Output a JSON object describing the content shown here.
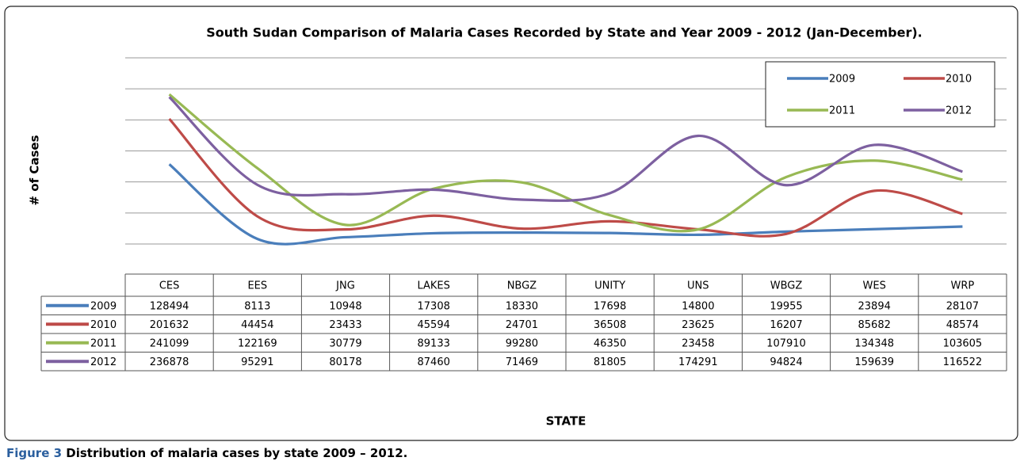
{
  "chart_data": {
    "type": "line",
    "title": "South Sudan Comparison of Malaria Cases Recorded by State and Year 2009 - 2012 (Jan-December).",
    "ylabel": "# of Cases",
    "xlabel": "STATE",
    "categories": [
      "CES",
      "EES",
      "JNG",
      "LAKES",
      "NBGZ",
      "UNITY",
      "UNS",
      "WBGZ",
      "WES",
      "WRP"
    ],
    "series": [
      {
        "name": "2009",
        "color": "#4a7ebb",
        "values": [
          128494,
          8113,
          10948,
          17308,
          18330,
          17698,
          14800,
          19955,
          23894,
          28107
        ]
      },
      {
        "name": "2010",
        "color": "#be4b48",
        "values": [
          201632,
          44454,
          23433,
          45594,
          24701,
          36508,
          23625,
          16207,
          85682,
          48574
        ]
      },
      {
        "name": "2011",
        "color": "#98b954",
        "values": [
          241099,
          122169,
          30779,
          89133,
          99280,
          46350,
          23458,
          107910,
          134348,
          103605
        ]
      },
      {
        "name": "2012",
        "color": "#7d60a0",
        "values": [
          236878,
          95291,
          80178,
          87460,
          71469,
          81805,
          174291,
          94824,
          159639,
          116522
        ]
      }
    ],
    "ylim": [
      0,
      300000
    ],
    "yticks": [
      0,
      50000,
      100000,
      150000,
      200000,
      250000,
      300000
    ],
    "grid": true,
    "legend": "upper right"
  },
  "caption_label": "Figure 3",
  "caption": "Distribution of malaria cases by state 2009 – 2012."
}
